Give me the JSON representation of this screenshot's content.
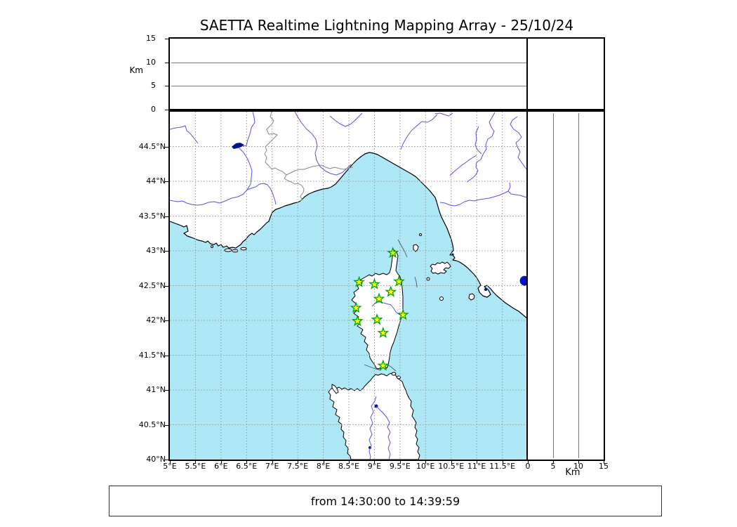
{
  "title": "SAETTA Realtime Lightning Mapping Array - 25/10/24",
  "footer": "from 14:30:00 to 14:39:59",
  "altitude_axis": {
    "unit_label": "Km",
    "ticks": [
      0,
      5,
      10,
      15
    ],
    "max": 15,
    "gridlines": [
      5,
      10
    ]
  },
  "map": {
    "lon_ticks": [
      {
        "v": 5,
        "label": "5°E"
      },
      {
        "v": 5.5,
        "label": "5.5°E"
      },
      {
        "v": 6,
        "label": "6°E"
      },
      {
        "v": 6.5,
        "label": "6.5°E"
      },
      {
        "v": 7,
        "label": "7°E"
      },
      {
        "v": 7.5,
        "label": "7.5°E"
      },
      {
        "v": 8,
        "label": "8°E"
      },
      {
        "v": 8.5,
        "label": "8.5°E"
      },
      {
        "v": 9,
        "label": "9°E"
      },
      {
        "v": 9.5,
        "label": "9.5°E"
      },
      {
        "v": 10,
        "label": "10°E"
      },
      {
        "v": 10.5,
        "label": "10.5°E"
      },
      {
        "v": 11,
        "label": "11°E"
      },
      {
        "v": 11.5,
        "label": "11.5°E"
      }
    ],
    "lat_ticks": [
      {
        "v": 40,
        "label": "40°N"
      },
      {
        "v": 40.5,
        "label": "40.5°N"
      },
      {
        "v": 41,
        "label": "41°N"
      },
      {
        "v": 41.5,
        "label": "41.5°N"
      },
      {
        "v": 42,
        "label": "42°N"
      },
      {
        "v": 42.5,
        "label": "42.5°N"
      },
      {
        "v": 43,
        "label": "43°N"
      },
      {
        "v": 43.5,
        "label": "43.5°N"
      },
      {
        "v": 44,
        "label": "44°N"
      },
      {
        "v": 44.5,
        "label": "44.5°N"
      }
    ],
    "lon_range": [
      5,
      12
    ],
    "lat_range": [
      40,
      45
    ],
    "stations": [
      {
        "lon": 9.36,
        "lat": 42.97
      },
      {
        "lon": 8.7,
        "lat": 42.55
      },
      {
        "lon": 9.0,
        "lat": 42.52
      },
      {
        "lon": 9.48,
        "lat": 42.56
      },
      {
        "lon": 9.32,
        "lat": 42.41
      },
      {
        "lon": 9.09,
        "lat": 42.31
      },
      {
        "lon": 8.64,
        "lat": 42.18
      },
      {
        "lon": 9.56,
        "lat": 42.08
      },
      {
        "lon": 9.05,
        "lat": 42.01
      },
      {
        "lon": 8.67,
        "lat": 41.99
      },
      {
        "lon": 9.17,
        "lat": 41.82
      },
      {
        "lon": 9.17,
        "lat": 41.35
      }
    ],
    "event_point": {
      "lon": 11.94,
      "lat": 42.57
    }
  },
  "colors": {
    "sea": "#aee8f7",
    "land": "#ffffff",
    "coast": "#000000",
    "river": "#5555e8",
    "country_border": "#888888",
    "grid": "#999999",
    "station_fill": "#ffff00",
    "station_edge": "#00a300",
    "event_dot": "#0011cc",
    "lake": "#001489"
  }
}
